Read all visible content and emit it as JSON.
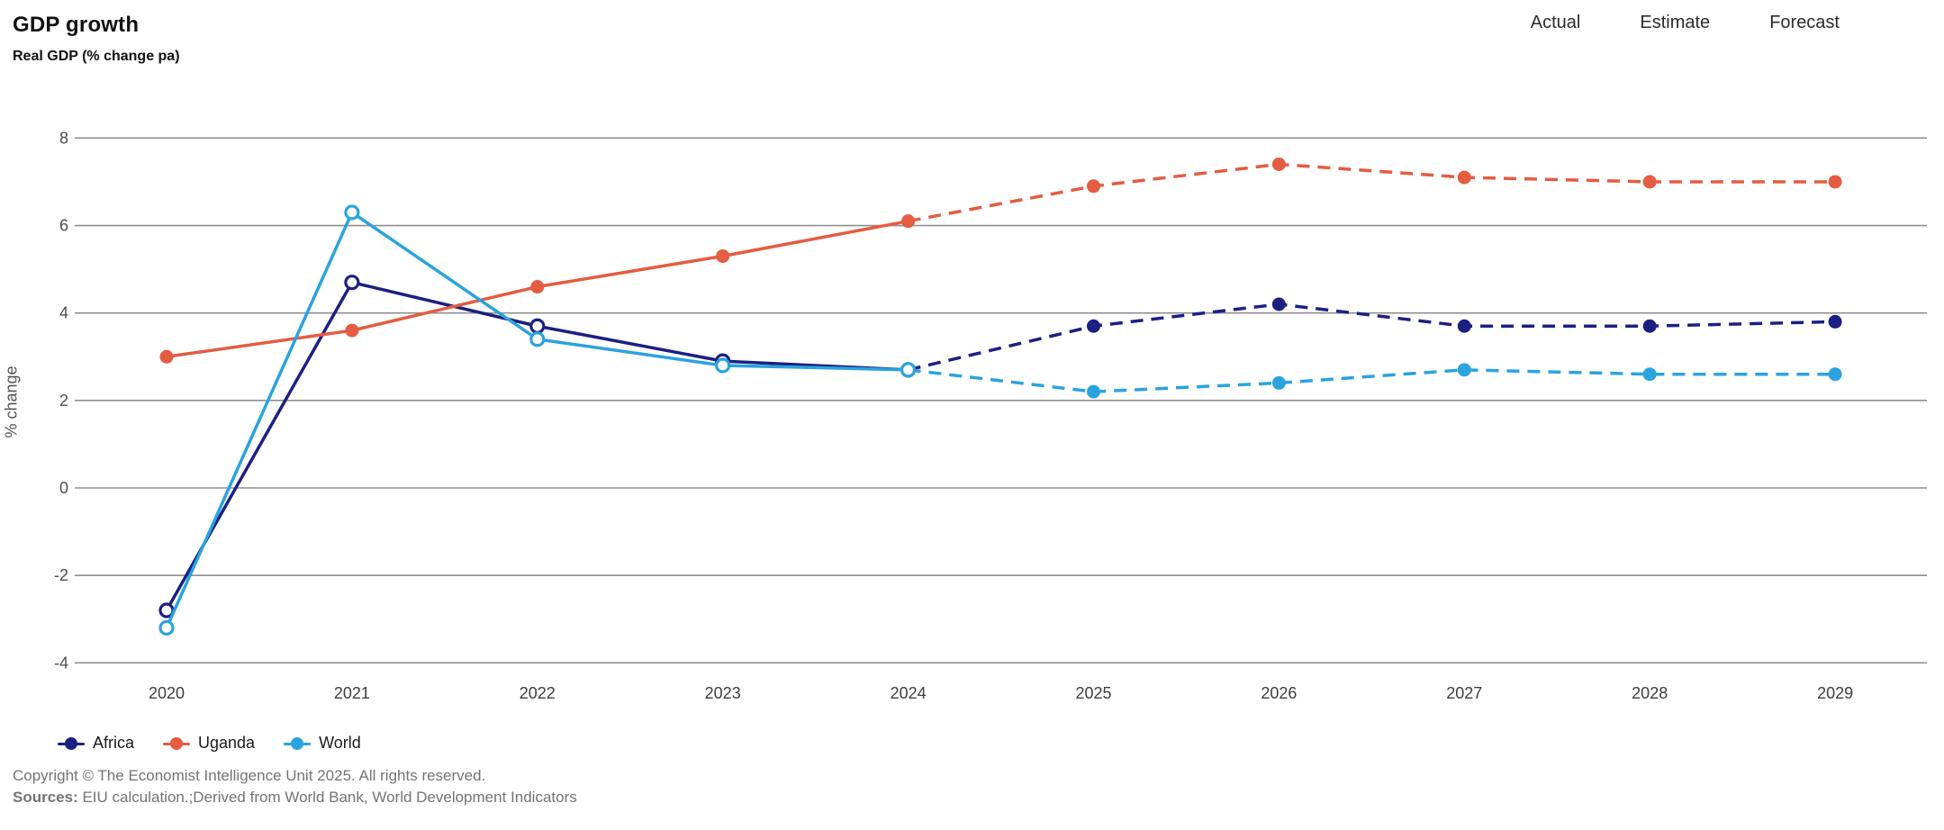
{
  "title": "GDP growth",
  "subtitle": "Real GDP (% change pa)",
  "header": {
    "zones": [
      "Actual",
      "Estimate",
      "Forecast"
    ]
  },
  "chart_data": {
    "type": "line",
    "x": [
      2020,
      2021,
      2022,
      2023,
      2024,
      2025,
      2026,
      2027,
      2028,
      2029
    ],
    "series": [
      {
        "name": "Africa",
        "color": "#1c2081",
        "values": [
          -2.8,
          4.7,
          3.7,
          2.9,
          2.7,
          3.7,
          4.2,
          3.7,
          3.7,
          3.8
        ],
        "open_markers_through_x": 2024
      },
      {
        "name": "Uganda",
        "color": "#e45c41",
        "values": [
          3.0,
          3.6,
          4.6,
          5.3,
          6.1,
          6.9,
          7.4,
          7.1,
          7.0,
          7.0
        ],
        "open_markers_through_x": null
      },
      {
        "name": "World",
        "color": "#2aa3de",
        "values": [
          -3.2,
          6.3,
          3.4,
          2.8,
          2.7,
          2.2,
          2.4,
          2.7,
          2.6,
          2.6
        ],
        "open_markers_through_x": 2024
      }
    ],
    "solid_through_x": 2024,
    "title": "GDP growth",
    "subtitle": "Real GDP (% change pa)",
    "xlabel": "",
    "ylabel": "% change",
    "y_ticks": [
      8,
      6,
      4,
      2,
      0,
      -2,
      -4
    ],
    "ylim": [
      -4,
      8
    ],
    "grid": "horizontal",
    "legend_position": "bottom-left",
    "grid_color": "#8f8f8f",
    "tick_color": "#4d4d4d",
    "xtick_color": "#3d3d3d"
  },
  "legend": {
    "items": [
      {
        "label": "Africa"
      },
      {
        "label": "Uganda"
      },
      {
        "label": "World"
      }
    ]
  },
  "footer": {
    "copyright": "Copyright © The Economist Intelligence Unit 2025. All rights reserved.",
    "sources_label": "Sources:",
    "sources_text": " EIU calculation.;Derived from World Bank, World Development Indicators"
  }
}
